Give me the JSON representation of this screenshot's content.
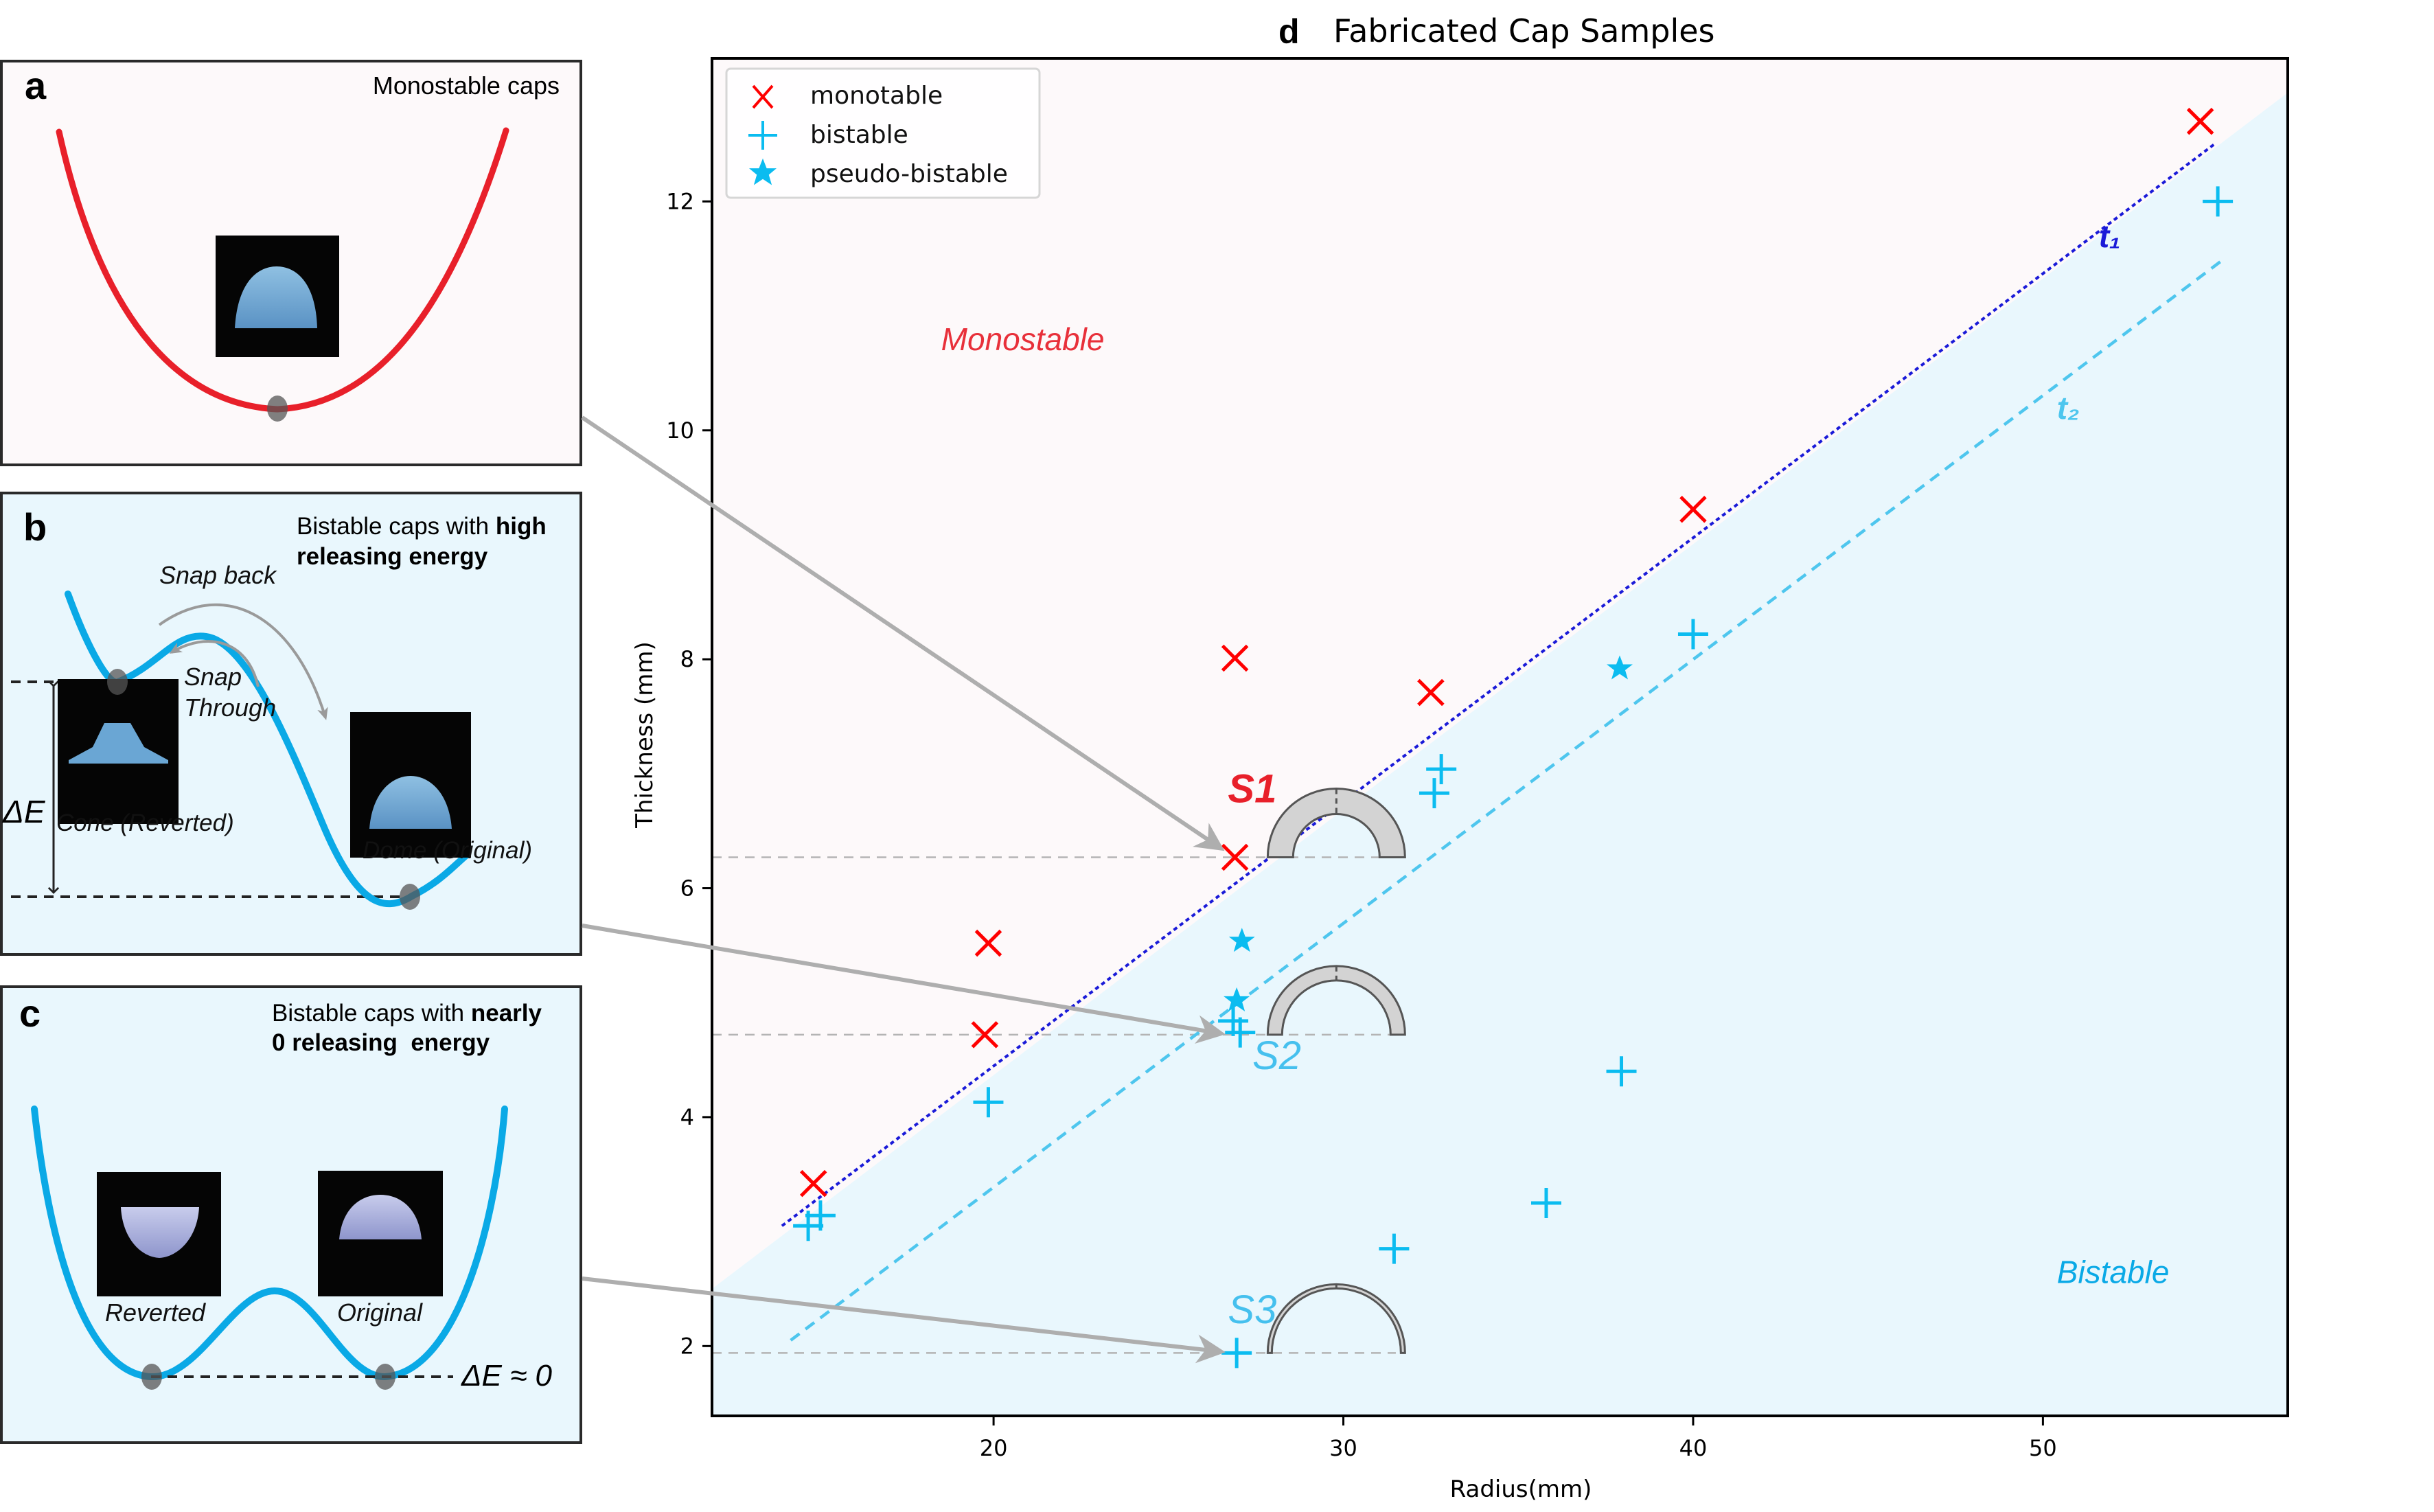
{
  "panels": {
    "a": {
      "letter": "a",
      "title": "Monostable caps",
      "curve_color": "#e8202a",
      "background": "#fdf9fa"
    },
    "b": {
      "letter": "b",
      "title_line1_normal": "Bistable caps with ",
      "title_line1_bold": "high",
      "title_line2_bold": "releasing energy",
      "snap_back": "Snap back",
      "snap_through_1": "Snap",
      "snap_through_2": "Through",
      "delta_e": "ΔE",
      "cone_label": "Cone (Reverted)",
      "dome_label": "Dome (Original)",
      "curve_color": "#0aa9e6",
      "background": "#e9f7fd"
    },
    "c": {
      "letter": "c",
      "title_line1_normal": "Bistable caps with ",
      "title_line1_bold": "nearly",
      "title_line2_bold": "0 releasing  energy",
      "reverted_label": "Reverted",
      "original_label": "Original",
      "delta_e": "ΔE ≈ 0",
      "curve_color": "#0aa9e6",
      "background": "#e9f7fd"
    }
  },
  "chart_data": {
    "type": "scatter",
    "panel_letter": "d",
    "title": "Fabricated Cap Samples",
    "xlabel": "Radius(mm)",
    "ylabel": "Thickness (mm)",
    "xlim": [
      11.95,
      57.0
    ],
    "ylim": [
      1.39,
      13.25
    ],
    "xticks": [
      20,
      30,
      40,
      50
    ],
    "yticks": [
      2,
      4,
      6,
      8,
      10,
      12
    ],
    "grid": false,
    "legend": {
      "position": "top-left",
      "entries": [
        "monotable",
        "bistable",
        "pseudo-bistable"
      ]
    },
    "region_labels": [
      {
        "text": "Monostable",
        "x": 18.5,
        "y": 10.7,
        "color": "#e8303a"
      },
      {
        "text": "Bistable",
        "x": 50.4,
        "y": 2.55,
        "color": "#0aa9e6"
      }
    ],
    "region_boundary": {
      "x": [
        11.95,
        57.0
      ],
      "y": [
        2.5,
        12.95
      ],
      "above_color": "#fdf9fa",
      "below_color": "#e9f7fd"
    },
    "series": [
      {
        "name": "monotable",
        "marker": "x",
        "color": "#ff0000",
        "points": [
          [
            14.85,
            3.42
          ],
          [
            19.85,
            5.52
          ],
          [
            19.75,
            4.72
          ],
          [
            26.9,
            8.01
          ],
          [
            26.9,
            6.27
          ],
          [
            32.5,
            7.71
          ],
          [
            40.0,
            9.31
          ],
          [
            54.5,
            12.7
          ]
        ]
      },
      {
        "name": "bistable",
        "marker": "+",
        "color": "#0bbcf0",
        "points": [
          [
            14.7,
            3.05
          ],
          [
            15.05,
            3.14
          ],
          [
            19.85,
            4.13
          ],
          [
            26.85,
            4.84
          ],
          [
            27.05,
            4.74
          ],
          [
            26.95,
            1.94
          ],
          [
            31.45,
            2.85
          ],
          [
            32.6,
            6.83
          ],
          [
            32.8,
            7.04
          ],
          [
            35.8,
            3.25
          ],
          [
            37.95,
            4.4
          ],
          [
            40.0,
            8.22
          ],
          [
            55.0,
            12.0
          ]
        ]
      },
      {
        "name": "pseudo-bistable",
        "marker": "*",
        "color": "#0bbcf0",
        "points": [
          [
            27.1,
            5.54
          ],
          [
            26.95,
            5.02
          ],
          [
            37.9,
            7.92
          ]
        ]
      }
    ],
    "lines": [
      {
        "name": "t1",
        "label": "t₁",
        "style": "dotted",
        "color": "#1a1ad8",
        "x": [
          13.95,
          54.9
        ],
        "y": [
          3.05,
          12.5
        ],
        "label_at": [
          51.6,
          11.6
        ]
      },
      {
        "name": "t2",
        "label": "t₂",
        "style": "dashed",
        "color": "#4ec6ee",
        "x": [
          14.2,
          55.1
        ],
        "y": [
          2.05,
          11.48
        ],
        "label_at": [
          50.4,
          10.1
        ]
      }
    ],
    "annotations": [
      {
        "text": "S1",
        "color": "#e8202a",
        "x": 26.9,
        "y": 6.27,
        "label_at": [
          26.7,
          6.75
        ]
      },
      {
        "text": "S2",
        "color": "#45c0ee",
        "x": 26.9,
        "y": 4.72,
        "label_at": [
          27.4,
          4.42
        ]
      },
      {
        "text": "S3",
        "color": "#45c0ee",
        "x": 26.9,
        "y": 1.94,
        "label_at": [
          26.7,
          2.2
        ]
      }
    ]
  }
}
